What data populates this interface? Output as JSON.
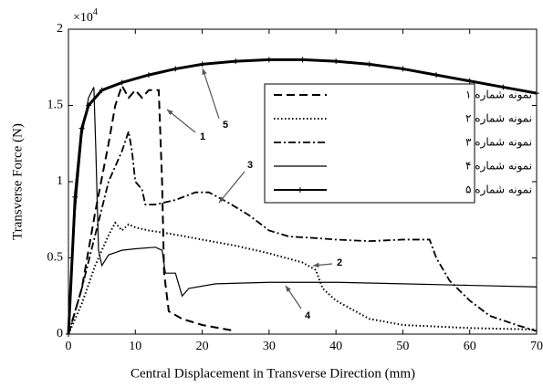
{
  "chart_data": {
    "type": "line",
    "xlabel": "Central Displacement in Transverse Direction (mm)",
    "ylabel": "Transverse Force (N)",
    "y_multiplier": "×10",
    "y_multiplier_exponent": "4",
    "xlim": [
      0,
      70
    ],
    "xticks": [
      0,
      10,
      20,
      30,
      40,
      50,
      60,
      70
    ],
    "ylim": [
      0,
      2
    ],
    "yticks": [
      0,
      0.5,
      1,
      1.5,
      2
    ],
    "series": [
      {
        "name": "نمونه شماره ۱",
        "color": "#000000",
        "dash": "9,5",
        "width": 2,
        "x": [
          0,
          2,
          4,
          6,
          7,
          8,
          9,
          10,
          11,
          12,
          13.5,
          14,
          14.3,
          15,
          17,
          20,
          25
        ],
        "values": [
          0,
          0.3,
          0.8,
          1.25,
          1.5,
          1.63,
          1.55,
          1.6,
          1.55,
          1.6,
          1.6,
          1.0,
          0.4,
          0.15,
          0.1,
          0.06,
          0.02
        ]
      },
      {
        "name": "نمونه شماره ۲",
        "color": "#000000",
        "dash": "1.5,2.5",
        "width": 2,
        "x": [
          0,
          2,
          4,
          6,
          7,
          8,
          9,
          10,
          12,
          15,
          20,
          25,
          30,
          35,
          37,
          38,
          40,
          45,
          50,
          60,
          70
        ],
        "values": [
          0,
          0.2,
          0.45,
          0.65,
          0.73,
          0.68,
          0.72,
          0.7,
          0.68,
          0.66,
          0.62,
          0.58,
          0.53,
          0.47,
          0.42,
          0.3,
          0.22,
          0.1,
          0.06,
          0.04,
          0.03
        ]
      },
      {
        "name": "نمونه شماره ۳",
        "color": "#000000",
        "dash": "8,3,2,3",
        "width": 1.8,
        "x": [
          0,
          2,
          4,
          6,
          8,
          9,
          9.5,
          10,
          11,
          11.5,
          13,
          16,
          19,
          21,
          24,
          27,
          30,
          33,
          37,
          40,
          45,
          50,
          54,
          55,
          57,
          60,
          63,
          67,
          70
        ],
        "values": [
          0,
          0.3,
          0.65,
          1.0,
          1.2,
          1.33,
          1.2,
          1.0,
          0.95,
          0.85,
          0.85,
          0.88,
          0.93,
          0.93,
          0.86,
          0.78,
          0.68,
          0.64,
          0.63,
          0.62,
          0.61,
          0.62,
          0.62,
          0.5,
          0.35,
          0.22,
          0.12,
          0.06,
          0.02
        ]
      },
      {
        "name": "نمونه شماره ۴",
        "color": "#000000",
        "dash": "none",
        "width": 1.2,
        "x": [
          0,
          1,
          2,
          3,
          3.8,
          4.1,
          4.5,
          5,
          6,
          8,
          10,
          13,
          14,
          14.5,
          15,
          16,
          17,
          18,
          22,
          30,
          40,
          50,
          60,
          70
        ],
        "values": [
          0,
          0.8,
          1.3,
          1.55,
          1.62,
          1.2,
          0.55,
          0.45,
          0.52,
          0.55,
          0.56,
          0.57,
          0.55,
          0.4,
          0.4,
          0.4,
          0.25,
          0.3,
          0.33,
          0.34,
          0.34,
          0.33,
          0.32,
          0.31
        ]
      },
      {
        "name": "نمونه شماره ۵",
        "color": "#000000",
        "dash": "none",
        "width": 3,
        "marker": "plus",
        "x": [
          0,
          1,
          2,
          3,
          5,
          8,
          12,
          16,
          20,
          25,
          30,
          35,
          40,
          45,
          50,
          55,
          60,
          65,
          70
        ],
        "values": [
          0,
          0.9,
          1.35,
          1.5,
          1.6,
          1.65,
          1.7,
          1.74,
          1.77,
          1.79,
          1.8,
          1.8,
          1.79,
          1.77,
          1.74,
          1.7,
          1.66,
          1.62,
          1.58
        ]
      }
    ],
    "annotations": [
      "1",
      "2",
      "3",
      "4",
      "5"
    ]
  }
}
